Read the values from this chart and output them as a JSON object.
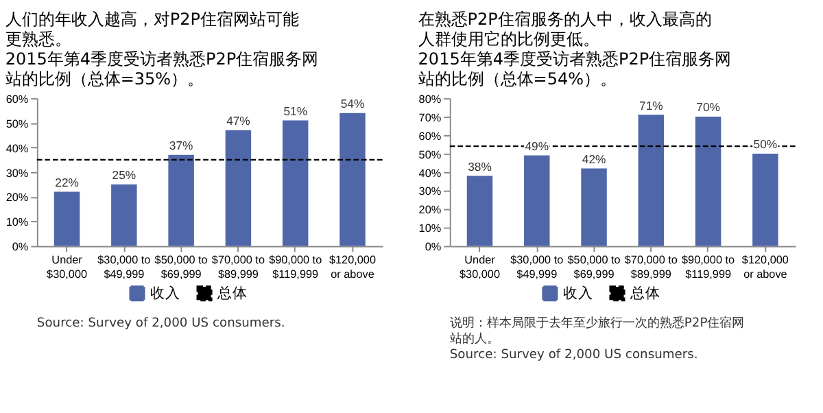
{
  "chart_data": [
    {
      "type": "bar",
      "title": "人们的年收入越高，对P2P住宿网站可能更熟悉。",
      "subtitle": "2015年第4季度受访者熟悉P2P住宿服务网站的比例（总体=35%）。",
      "categories": [
        "Under\n$30,000",
        "$30,000 to\n$49,999",
        "$50,000 to\n$69,999",
        "$70,000 to\n$89,999",
        "$90,000 to\n$119,999",
        "$120,000\nor above"
      ],
      "series": [
        {
          "name": "收入",
          "color": "#4f67a8",
          "values": [
            22,
            25,
            37,
            47,
            51,
            54
          ],
          "value_labels": [
            "22%",
            "25%",
            "37%",
            "47%",
            "51%",
            "54%"
          ]
        }
      ],
      "ylim": [
        0,
        60
      ],
      "yticks": [
        {
          "value": 0,
          "label": "0%"
        },
        {
          "value": 10,
          "label": "10%"
        },
        {
          "value": 20,
          "label": "20%"
        },
        {
          "value": 30,
          "label": "30%"
        },
        {
          "value": 40,
          "label": "40%"
        },
        {
          "value": 50,
          "label": "50%"
        },
        {
          "value": 60,
          "label": "60%"
        }
      ],
      "ref_lines": [
        {
          "axis": "y",
          "value": 35,
          "label": "总体",
          "color": "#000000",
          "line_style": "dashed"
        }
      ],
      "legend": "bottom",
      "grid": false,
      "annotations": [
        "Source: Survey of 2,000 US consumers."
      ]
    },
    {
      "type": "bar",
      "title": "在熟悉P2P住宿服务的人中，收入最高的人群使用它的比例更低。",
      "subtitle": "2015年第4季度受访者熟悉P2P住宿服务网站的比例（总体=54%）。",
      "categories": [
        "Under\n$30,000",
        "$30,000 to\n$49,999",
        "$50,000 to\n$69,999",
        "$70,000 to\n$89,999",
        "$90,000 to\n$119,999",
        "$120,000\nor above"
      ],
      "series": [
        {
          "name": "收入",
          "color": "#4f67a8",
          "values": [
            38,
            49,
            42,
            71,
            70,
            50
          ],
          "value_labels": [
            "38%",
            "49%",
            "42%",
            "71%",
            "70%",
            "50%"
          ]
        }
      ],
      "ylim": [
        0,
        80
      ],
      "yticks": [
        {
          "value": 0,
          "label": "0%"
        },
        {
          "value": 10,
          "label": "10%"
        },
        {
          "value": 20,
          "label": "20%"
        },
        {
          "value": 30,
          "label": "30%"
        },
        {
          "value": 40,
          "label": "40%"
        },
        {
          "value": 50,
          "label": "50%"
        },
        {
          "value": 60,
          "label": "60%"
        },
        {
          "value": 70,
          "label": "70%"
        },
        {
          "value": 80,
          "label": "80%"
        }
      ],
      "ref_lines": [
        {
          "axis": "y",
          "value": 54,
          "label": "总体",
          "color": "#000000",
          "line_style": "dashed"
        }
      ],
      "legend": "bottom",
      "grid": false,
      "annotations": [
        "说明：样本局限于去年至少旅行一次的熟悉P2P住宿网站的人。",
        "Source: Survey of 2,000 US consumers."
      ]
    }
  ]
}
